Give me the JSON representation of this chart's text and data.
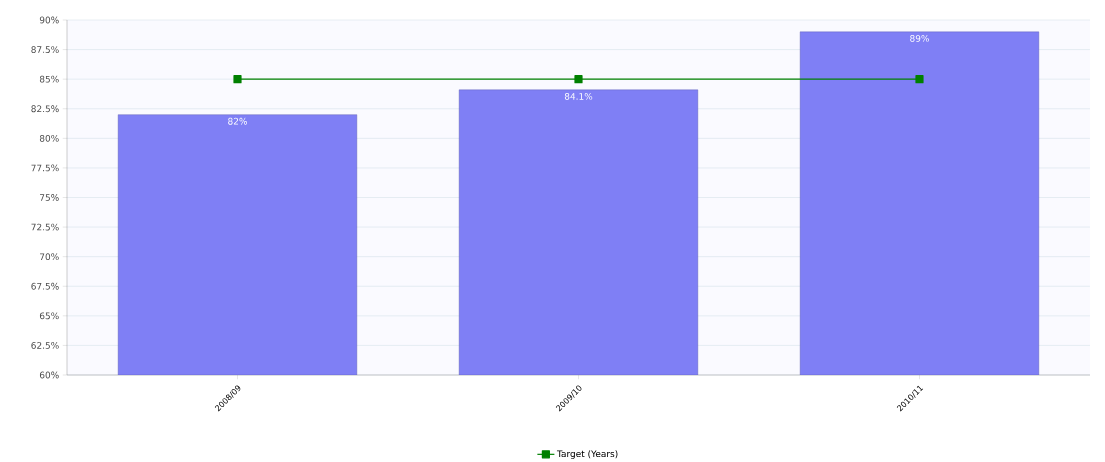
{
  "chart_data": {
    "type": "bar",
    "categories": [
      "2008/09",
      "2009/10",
      "2010/11"
    ],
    "series": [
      {
        "color": "#7f7ff5",
        "values": [
          82,
          84.1,
          89
        ],
        "value_labels": [
          "82%",
          "84.1%",
          "89%"
        ]
      },
      {
        "type": "line",
        "name": "Target (Years)",
        "color": "#008000",
        "values": [
          85,
          85,
          85
        ],
        "marker": "square",
        "line_style": "solid"
      }
    ],
    "ylim": [
      60,
      90
    ],
    "yticks": [
      {
        "value": 60,
        "label": "60%"
      },
      {
        "value": 62.5,
        "label": "62.5%"
      },
      {
        "value": 65,
        "label": "65%"
      },
      {
        "value": 67.5,
        "label": "67.5%"
      },
      {
        "value": 70,
        "label": "70%"
      },
      {
        "value": 72.5,
        "label": "72.5%"
      },
      {
        "value": 75,
        "label": "75%"
      },
      {
        "value": 77.5,
        "label": "77.5%"
      },
      {
        "value": 80,
        "label": "80%"
      },
      {
        "value": 82.5,
        "label": "82.5%"
      },
      {
        "value": 85,
        "label": "85%"
      },
      {
        "value": 87.5,
        "label": "87.5%"
      },
      {
        "value": 90,
        "label": "90%"
      }
    ],
    "grid": "y",
    "legend": "bottom"
  }
}
